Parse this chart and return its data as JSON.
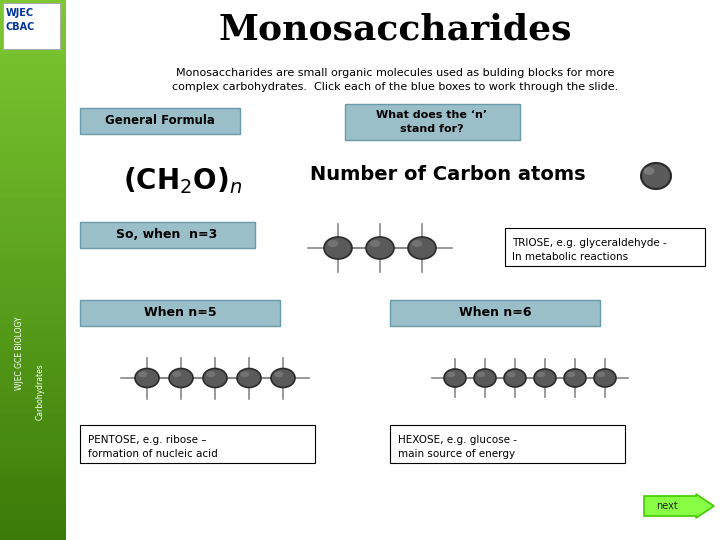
{
  "title": "Monosaccharides",
  "subtitle": "Monosaccharides are small organic molecules used as bulding blocks for more\ncomplex carbohydrates.  Click each of the blue boxes to work through the slide.",
  "bg_color": "#ffffff",
  "sidebar_green_top": "#7dc832",
  "sidebar_green_bot": "#3a7a08",
  "sidebar_text1": "WJEC GCE BIOLOGY",
  "sidebar_text2": "Carbohydrates",
  "box_blue": "#9bbfc8",
  "atom_color": "#5a5a5a",
  "atom_edge": "#2a2a2a",
  "btn_general": "General Formula",
  "btn_what": "What does the ‘n’\nstand for?",
  "btn_n3": "So, when  n=3",
  "btn_n5": "When n=5",
  "btn_n6": "When n=6",
  "triose_line1": "TRIOSE, e.g. glyceraldehyde -",
  "triose_line2": "In metabolic reactions",
  "pentose_line1": "PENTOSE, e.g. ribose –",
  "pentose_line2": "formation of nucleic acid",
  "hexose_line1": "HEXOSE, e.g. glucose -",
  "hexose_line2": "main source of energy",
  "next_text": "next",
  "next_color": "#88ff44",
  "next_edge": "#44cc00",
  "formula_label": "Number of Carbon atoms"
}
